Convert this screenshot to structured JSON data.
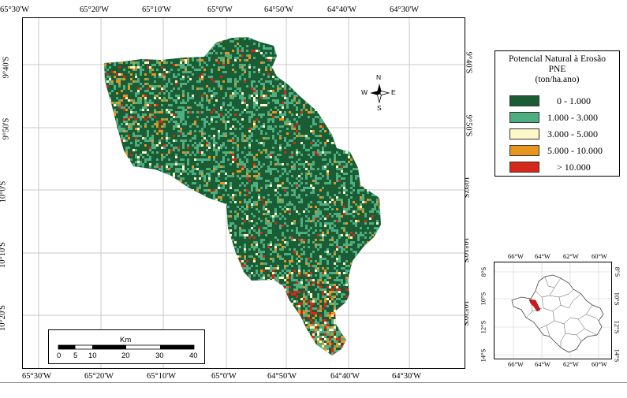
{
  "map": {
    "top_ticks": [
      "65°30'W",
      "65°20'W",
      "65°10'W",
      "65°0'W",
      "64°50'W",
      "64°40'W",
      "64°30'W"
    ],
    "bottom_ticks": [
      "65°30'W",
      "65°20'W",
      "65°10'W",
      "65°0'W",
      "64°50'W",
      "64°40'W",
      "64°30'W"
    ],
    "left_ticks": [
      "9°40'S",
      "9°50'S",
      "10°0'S",
      "10°10'S",
      "10°20'S"
    ],
    "right_ticks": [
      "9°40'S",
      "9°50'S",
      "10°0'S",
      "10°10'S",
      "10°20'S"
    ],
    "compass": {
      "n": "N",
      "s": "S",
      "e": "E",
      "w": "W"
    }
  },
  "legend": {
    "title_line1": "Potencial Natural à Erosão",
    "title_line2": "PNE",
    "title_line3": "(ton/ha.ano)",
    "classes": [
      {
        "label": "0 - 1.000",
        "color": "#1a5c34"
      },
      {
        "label": "1.000 - 3.000",
        "color": "#4fae80"
      },
      {
        "label": "3.000 - 5.000",
        "color": "#fdf8c8"
      },
      {
        "label": "5.000 - 10.000",
        "color": "#e8951f"
      },
      {
        "label": "> 10.000",
        "color": "#d6281a"
      }
    ]
  },
  "scale_bar": {
    "unit": "Km",
    "labels": [
      "0",
      "5",
      "10",
      "20",
      "30",
      "40"
    ]
  },
  "inset": {
    "top_ticks": [
      "66°W",
      "64°W",
      "62°W",
      "60°W"
    ],
    "bottom_ticks": [
      "66°W",
      "64°W",
      "62°W",
      "60°W"
    ],
    "left_ticks": [
      "8°S",
      "10°S",
      "12°S",
      "14°S"
    ],
    "right_ticks": [
      "8°S",
      "10°S",
      "12°S",
      "14°S"
    ],
    "highlight_color": "#cc1a1a"
  }
}
